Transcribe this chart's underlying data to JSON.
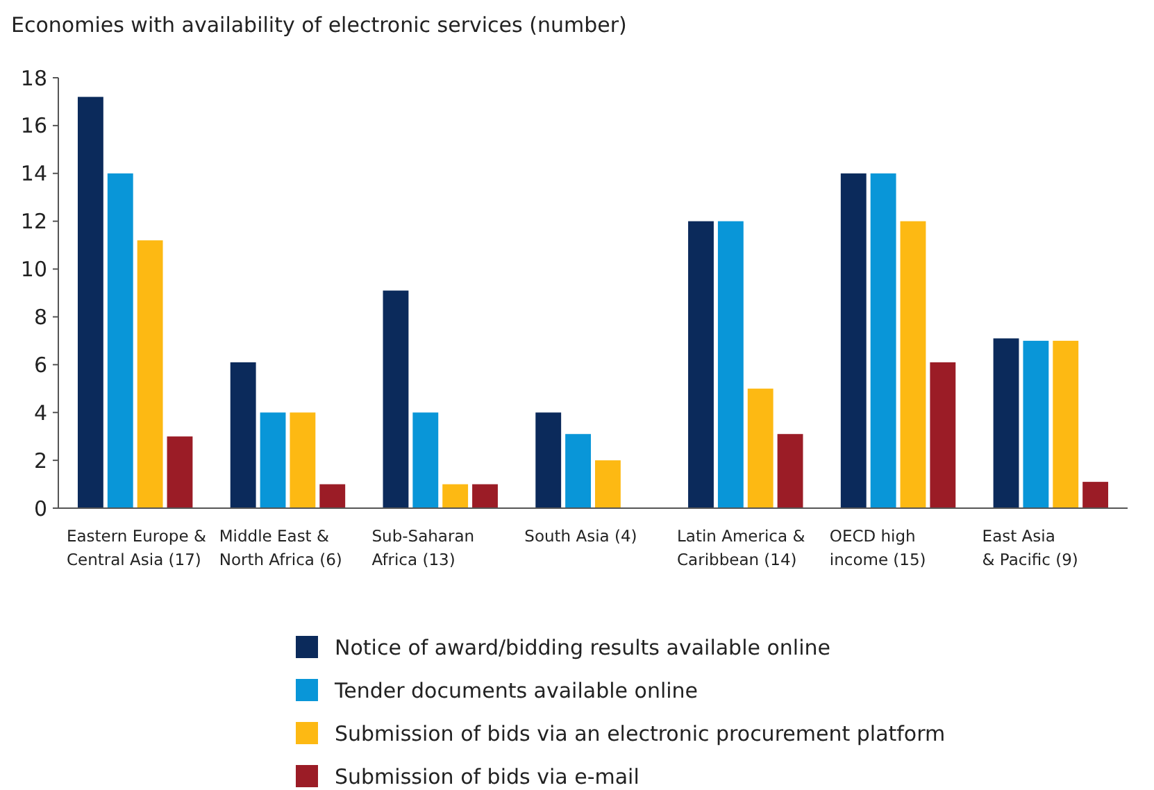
{
  "chart_data": {
    "type": "bar",
    "title": "Economies with availability of electronic services (number)",
    "categories": [
      "Eastern Europe &\nCentral Asia (17)",
      "Middle East &\nNorth Africa (6)",
      "Sub-Saharan\nAfrica (13)",
      "South Asia (4)",
      "Latin America &\nCaribbean (14)",
      "OECD high\nincome (15)",
      "East Asia\n& Pacific (9)"
    ],
    "series": [
      {
        "name": "Notice of award/bidding results available online",
        "color": "#0b2a5b",
        "values": [
          17.2,
          6.1,
          9.1,
          4,
          12,
          14,
          7.1
        ]
      },
      {
        "name": "Tender documents available online",
        "color": "#0996d8",
        "values": [
          14,
          4,
          4,
          3.1,
          12,
          14,
          7
        ]
      },
      {
        "name": "Submission of bids via an electronic procurement platform",
        "color": "#fdb913",
        "values": [
          11.2,
          4,
          1,
          2,
          5,
          12,
          7
        ]
      },
      {
        "name": "Submission of bids via e-mail",
        "color": "#9b1c26",
        "values": [
          3,
          1,
          1,
          null,
          3.1,
          6.1,
          1.1
        ]
      }
    ],
    "ylim": [
      0,
      18
    ],
    "yticks": [
      0,
      2,
      4,
      6,
      8,
      10,
      12,
      14,
      16,
      18
    ],
    "grid": false,
    "legend": "bottom"
  }
}
